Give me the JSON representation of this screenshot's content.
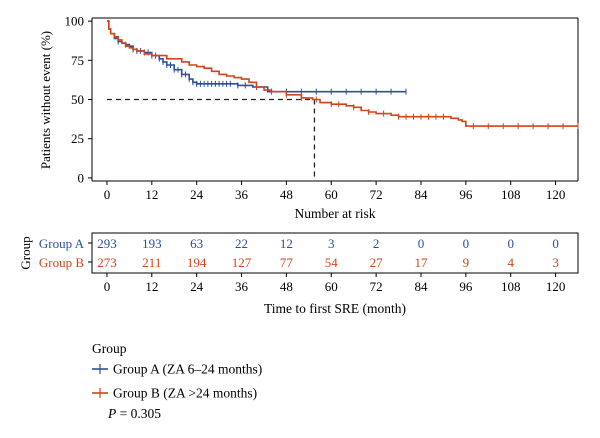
{
  "chart_data": {
    "type": "line",
    "subtype": "kaplan-meier",
    "title": "",
    "ylabel": "Patients without event (%)",
    "xlabel": "Number at risk",
    "xlabel_risk": "Time to first SRE (month)",
    "xlim": [
      -4,
      126
    ],
    "ylim": [
      -2,
      102
    ],
    "xticks": [
      0,
      12,
      24,
      36,
      48,
      60,
      72,
      84,
      96,
      108,
      120
    ],
    "yticks": [
      0,
      25,
      50,
      75,
      100
    ],
    "grid": false,
    "median_reference": {
      "y": 50,
      "x": 55.5
    },
    "series": [
      {
        "name": "Group A",
        "color": "#2b4fa0",
        "points": [
          [
            0,
            100
          ],
          [
            0.5,
            95
          ],
          [
            1,
            92
          ],
          [
            2,
            89
          ],
          [
            3,
            87
          ],
          [
            4,
            86
          ],
          [
            5,
            85
          ],
          [
            6,
            84
          ],
          [
            7,
            82
          ],
          [
            8,
            81
          ],
          [
            10,
            80
          ],
          [
            12,
            78
          ],
          [
            14,
            76
          ],
          [
            15,
            74
          ],
          [
            16,
            72
          ],
          [
            18,
            69
          ],
          [
            20,
            66
          ],
          [
            22,
            63
          ],
          [
            23,
            61
          ],
          [
            24,
            60
          ],
          [
            30,
            60
          ],
          [
            35,
            59
          ],
          [
            38,
            59
          ],
          [
            39,
            58
          ],
          [
            42,
            58
          ],
          [
            43,
            55
          ],
          [
            80,
            55
          ]
        ],
        "censor_x": [
          3,
          5,
          7,
          8,
          9,
          10,
          11,
          12,
          13,
          14,
          15,
          16,
          17,
          18,
          19,
          20,
          21,
          22,
          23,
          24,
          25,
          26,
          27,
          28,
          29,
          30,
          31,
          32,
          33,
          35,
          37,
          40,
          44,
          48,
          52,
          56,
          60,
          64,
          68,
          72,
          76,
          80
        ]
      },
      {
        "name": "Group B",
        "color": "#d2441a",
        "points": [
          [
            0,
            100
          ],
          [
            0.5,
            95
          ],
          [
            1,
            92
          ],
          [
            2,
            90
          ],
          [
            3,
            88
          ],
          [
            4,
            86
          ],
          [
            5,
            84
          ],
          [
            6,
            83
          ],
          [
            7,
            82
          ],
          [
            8,
            81
          ],
          [
            10,
            79
          ],
          [
            12,
            78
          ],
          [
            16,
            76
          ],
          [
            20,
            74
          ],
          [
            22,
            72
          ],
          [
            24,
            71
          ],
          [
            26,
            70
          ],
          [
            28,
            68
          ],
          [
            30,
            66
          ],
          [
            32,
            65
          ],
          [
            34,
            64
          ],
          [
            36,
            63
          ],
          [
            38,
            61
          ],
          [
            40,
            58
          ],
          [
            42,
            56
          ],
          [
            44,
            55
          ],
          [
            48,
            53
          ],
          [
            52,
            51
          ],
          [
            55,
            50
          ],
          [
            57,
            48
          ],
          [
            60,
            47
          ],
          [
            64,
            46
          ],
          [
            66,
            45
          ],
          [
            68,
            43
          ],
          [
            70,
            42
          ],
          [
            72,
            41
          ],
          [
            76,
            40
          ],
          [
            78,
            39
          ],
          [
            90,
            39
          ],
          [
            92,
            38
          ],
          [
            94,
            37
          ],
          [
            95,
            36
          ],
          [
            96,
            33
          ],
          [
            126,
            33
          ]
        ],
        "censor_x": [
          40,
          44,
          48,
          52,
          56,
          60,
          62,
          66,
          70,
          74,
          78,
          80,
          82,
          84,
          86,
          88,
          90,
          98,
          102,
          106,
          110,
          114,
          118,
          122,
          126
        ]
      }
    ],
    "risk_table": {
      "axis_title": "Group",
      "times": [
        0,
        12,
        24,
        36,
        48,
        60,
        72,
        84,
        96,
        108,
        120
      ],
      "rows": [
        {
          "label": "Group A",
          "color": "#2b4fa0",
          "values": [
            293,
            193,
            63,
            22,
            12,
            3,
            2,
            0,
            0,
            0,
            0
          ]
        },
        {
          "label": "Group B",
          "color": "#d2441a",
          "values": [
            273,
            211,
            194,
            127,
            77,
            54,
            27,
            17,
            9,
            4,
            3
          ]
        }
      ]
    },
    "legend": {
      "title": "Group",
      "items": [
        {
          "label": "Group A (ZA 6–24 months)",
          "color": "#2b4fa0"
        },
        {
          "label": "Group B (ZA >24 months)",
          "color": "#d2441a"
        }
      ],
      "p_symbol": "P",
      "p_value": " = 0.305"
    }
  }
}
